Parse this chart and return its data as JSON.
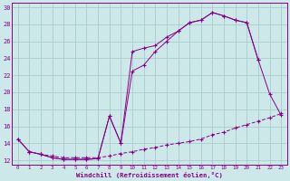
{
  "xlabel": "Windchill (Refroidissement éolien,°C)",
  "bg_color": "#cce8e8",
  "grid_color": "#aacccc",
  "line_color": "#880088",
  "xlim": [
    -0.5,
    23.5
  ],
  "ylim": [
    11.5,
    30.5
  ],
  "yticks": [
    12,
    14,
    16,
    18,
    20,
    22,
    24,
    26,
    28,
    30
  ],
  "xticks": [
    0,
    1,
    2,
    3,
    4,
    5,
    6,
    7,
    8,
    9,
    10,
    11,
    12,
    13,
    14,
    15,
    16,
    17,
    18,
    19,
    20,
    21,
    22,
    23
  ],
  "line1_x": [
    0,
    1,
    2,
    3,
    4,
    5,
    6,
    7,
    8,
    9,
    10,
    11,
    12,
    13,
    14,
    15,
    16,
    17,
    18,
    19,
    20,
    21,
    22,
    23
  ],
  "line1_y": [
    14.5,
    13.0,
    12.7,
    12.3,
    12.1,
    12.1,
    12.1,
    12.2,
    17.2,
    14.0,
    22.5,
    23.2,
    24.8,
    26.0,
    27.2,
    28.2,
    28.5,
    29.4,
    29.0,
    28.5,
    28.2,
    23.8,
    19.8,
    17.3
  ],
  "line2_x": [
    0,
    1,
    2,
    3,
    4,
    5,
    6,
    7,
    8,
    9,
    10,
    11,
    12,
    13,
    14,
    15,
    16,
    17,
    18,
    19,
    20,
    21
  ],
  "line2_y": [
    14.5,
    13.0,
    12.7,
    12.3,
    12.1,
    12.1,
    12.1,
    12.2,
    17.2,
    14.0,
    24.8,
    25.2,
    25.5,
    26.5,
    27.2,
    28.2,
    28.5,
    29.4,
    29.0,
    28.5,
    28.2,
    23.8
  ],
  "line3_x": [
    1,
    2,
    3,
    4,
    5,
    6,
    7,
    8,
    9,
    10,
    11,
    12,
    13,
    14,
    15,
    16,
    17,
    18,
    19,
    20,
    21,
    22,
    23
  ],
  "line3_y": [
    13.0,
    12.7,
    12.5,
    12.3,
    12.3,
    12.3,
    12.3,
    12.5,
    12.8,
    13.0,
    13.3,
    13.5,
    13.8,
    14.0,
    14.2,
    14.5,
    15.0,
    15.3,
    15.8,
    16.2,
    16.6,
    17.0,
    17.5
  ]
}
